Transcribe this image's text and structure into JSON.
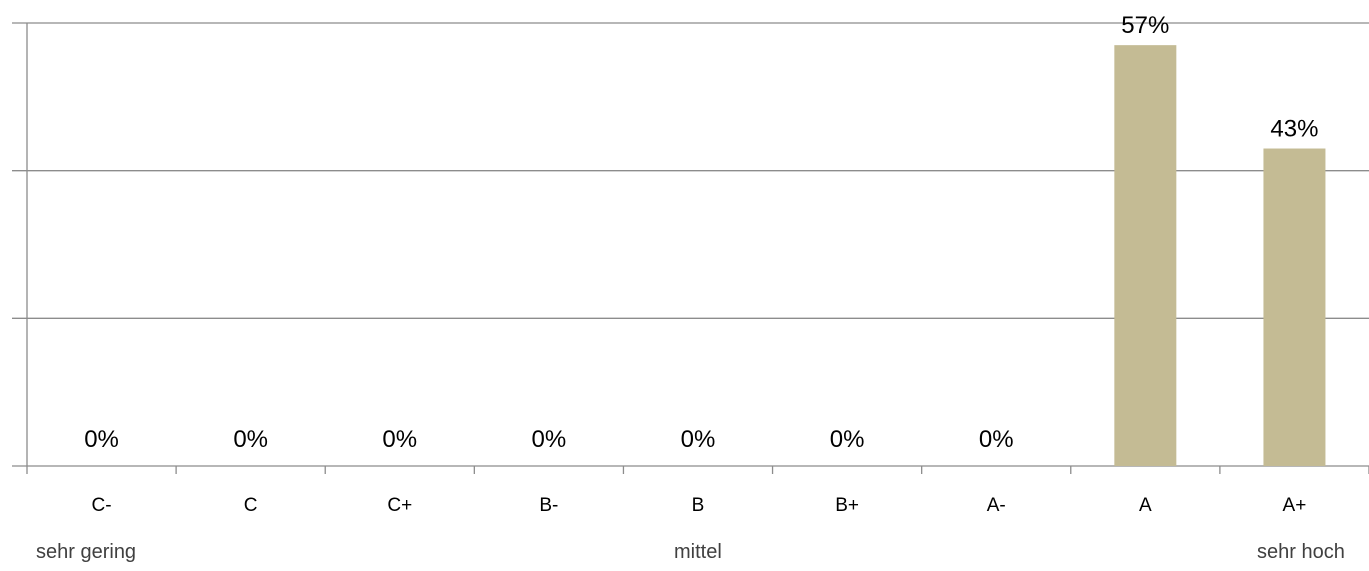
{
  "chart_data": {
    "type": "bar",
    "categories": [
      "C-",
      "C",
      "C+",
      "B-",
      "B",
      "B+",
      "A-",
      "A",
      "A+"
    ],
    "values": [
      0,
      0,
      0,
      0,
      0,
      0,
      0,
      57,
      43
    ],
    "data_labels": [
      "0%",
      "0%",
      "0%",
      "0%",
      "0%",
      "0%",
      "0%",
      "57%",
      "43%"
    ],
    "ylim": [
      0,
      60
    ],
    "grid": true,
    "bar_color": "#C4BB94",
    "scale_labels": {
      "low": "sehr gering",
      "mid": "mittel",
      "high": "sehr hoch"
    }
  }
}
